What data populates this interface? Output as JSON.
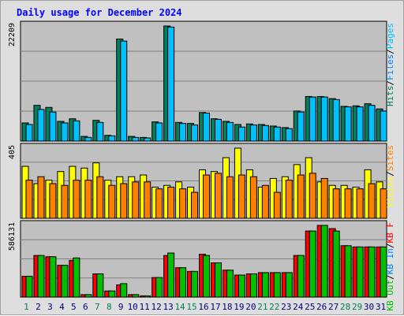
{
  "chart_data": {
    "type": "bar",
    "title": "Daily usage for December 2024",
    "categories": [
      "1",
      "2",
      "3",
      "4",
      "5",
      "6",
      "7",
      "8",
      "9",
      "10",
      "11",
      "12",
      "13",
      "14",
      "15",
      "16",
      "17",
      "18",
      "19",
      "20",
      "21",
      "22",
      "23",
      "24",
      "25",
      "26",
      "27",
      "28",
      "29",
      "30",
      "31"
    ],
    "weekend_days": [
      "1",
      "7",
      "8",
      "14",
      "15",
      "21",
      "22",
      "28",
      "29"
    ],
    "panels": [
      {
        "id": "pages-files-hits",
        "max_label": "22209",
        "ymax": 22209,
        "series": [
          {
            "name": "Hits",
            "color": "#00805c",
            "values": [
              3500,
              6900,
              6500,
              3800,
              4300,
              900,
              4000,
              1100,
              19700,
              900,
              700,
              3700,
              22209,
              3600,
              3400,
              5500,
              4300,
              3800,
              3200,
              3300,
              3200,
              2900,
              2600,
              5800,
              8600,
              8600,
              8200,
              6700,
              6800,
              7200,
              6200
            ]
          },
          {
            "name": "Files",
            "color": "#0080ff",
            "values": [
              0,
              0,
              0,
              0,
              0,
              0,
              0,
              0,
              0,
              0,
              0,
              0,
              0,
              0,
              0,
              0,
              0,
              0,
              0,
              0,
              0,
              0,
              0,
              0,
              0,
              0,
              0,
              0,
              0,
              0,
              0
            ]
          },
          {
            "name": "Pages",
            "color": "#00c0ff",
            "values": [
              3200,
              6100,
              5600,
              3500,
              3900,
              700,
              3600,
              1000,
              19300,
              700,
              600,
              3500,
              22000,
              3400,
              3100,
              5400,
              4200,
              3600,
              2700,
              3100,
              3000,
              2700,
              2400,
              5600,
              8500,
              8500,
              8000,
              6600,
              6600,
              6900,
              5800
            ]
          }
        ]
      },
      {
        "id": "visits-sites",
        "max_label": "405",
        "ymax": 405,
        "series": [
          {
            "name": "Visits",
            "color": "#ffff00",
            "values": [
              300,
              200,
              220,
              270,
              300,
              290,
              320,
              220,
              240,
              240,
              250,
              180,
              190,
              210,
              180,
              280,
              270,
              350,
              405,
              280,
              180,
              230,
              240,
              310,
              350,
              210,
              190,
              190,
              180,
              280,
              210
            ]
          },
          {
            "name": "Sites",
            "color": "#ff8000",
            "values": [
              220,
              240,
              200,
              190,
              220,
              220,
              240,
              190,
              200,
              210,
              210,
              170,
              180,
              170,
              150,
              250,
              260,
              240,
              250,
              240,
              190,
              150,
              220,
              250,
              260,
              230,
              170,
              170,
              170,
              200,
              170
            ]
          }
        ]
      },
      {
        "id": "kbf-kbin-kbout",
        "max_label": "586131",
        "ymax": 586131,
        "series": [
          {
            "name": "KB F",
            "color": "#ff0000",
            "values": [
              170000,
              340000,
              330000,
              260000,
              300000,
              20000,
              190000,
              50000,
              100000,
              20000,
              10000,
              160000,
              340000,
              240000,
              210000,
              350000,
              280000,
              220000,
              180000,
              190000,
              200000,
              200000,
              200000,
              340000,
              540000,
              586131,
              560000,
              420000,
              410000,
              410000,
              410000
            ]
          },
          {
            "name": "KB In",
            "color": "#0080ff",
            "values": [
              0,
              0,
              0,
              0,
              0,
              0,
              0,
              0,
              0,
              0,
              0,
              0,
              0,
              0,
              0,
              0,
              0,
              0,
              0,
              0,
              0,
              0,
              0,
              0,
              0,
              0,
              0,
              0,
              0,
              0,
              0
            ]
          },
          {
            "name": "KB Out",
            "color": "#00c000",
            "values": [
              170000,
              340000,
              330000,
              260000,
              320000,
              20000,
              190000,
              50000,
              110000,
              20000,
              10000,
              160000,
              360000,
              240000,
              210000,
              340000,
              280000,
              220000,
              180000,
              190000,
              200000,
              200000,
              200000,
              340000,
              540000,
              586131,
              540000,
              420000,
              410000,
              410000,
              410000
            ]
          }
        ]
      }
    ],
    "legend": {
      "panel1": [
        {
          "text": "Hits",
          "color": "#00805c"
        },
        {
          "text": "/",
          "color": "#000000"
        },
        {
          "text": "Files",
          "color": "#0080ff"
        },
        {
          "text": "/",
          "color": "#000000"
        },
        {
          "text": "Pages",
          "color": "#00c0ff"
        }
      ],
      "panel2": [
        {
          "text": "Visits",
          "color": "#ffff00"
        },
        {
          "text": "/",
          "color": "#000000"
        },
        {
          "text": "Sites",
          "color": "#ff8000"
        }
      ],
      "panel3": [
        {
          "text": "KB Out",
          "color": "#00c000"
        },
        {
          "text": "/",
          "color": "#000000"
        },
        {
          "text": "KB In",
          "color": "#0080ff"
        },
        {
          "text": "/",
          "color": "#000000"
        },
        {
          "text": "KB F",
          "color": "#ff0000"
        }
      ]
    },
    "colors": {
      "title": "#0000ff",
      "plot_bg": "#c0c0c0",
      "weekday_label": "#000080",
      "weekend_label": "#00805c"
    }
  }
}
